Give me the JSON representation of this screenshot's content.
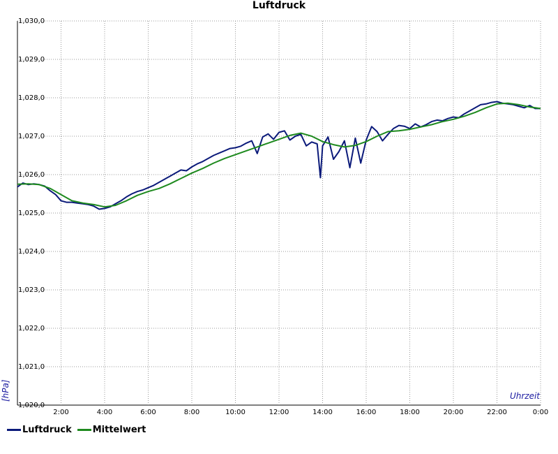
{
  "chart_data": {
    "type": "line",
    "title": "Luftdruck",
    "xlabel": "Uhrzeit",
    "ylabel": "[hPa]",
    "xlim": [
      0,
      24
    ],
    "ylim": [
      1020,
      1030
    ],
    "x_tick_labels": [
      "2:00",
      "4:00",
      "6:00",
      "8:00",
      "10:00",
      "12:00",
      "14:00",
      "16:00",
      "18:00",
      "20:00",
      "22:00",
      "0:00"
    ],
    "y_tick_labels": [
      "1,020,0",
      "1,021,0",
      "1,022,0",
      "1,023,0",
      "1,024,0",
      "1,025,0",
      "1,026,0",
      "1,027,0",
      "1,028,0",
      "1,029,0",
      "1,030,0"
    ],
    "grid": true,
    "legend_position": "bottom-left",
    "series": [
      {
        "name": "Luftdruck",
        "color": "#0b1a7a",
        "x": [
          0,
          0.25,
          0.5,
          0.75,
          1,
          1.25,
          1.5,
          1.75,
          2,
          2.25,
          2.5,
          2.75,
          3,
          3.25,
          3.5,
          3.75,
          4,
          4.25,
          4.5,
          4.75,
          5,
          5.25,
          5.5,
          5.75,
          6,
          6.25,
          6.5,
          6.75,
          7,
          7.25,
          7.5,
          7.75,
          8,
          8.25,
          8.5,
          8.75,
          9,
          9.25,
          9.5,
          9.75,
          10,
          10.25,
          10.5,
          10.75,
          11,
          11.25,
          11.5,
          11.75,
          12,
          12.25,
          12.5,
          12.75,
          13,
          13.25,
          13.5,
          13.75,
          13.9,
          14,
          14.25,
          14.5,
          14.75,
          15,
          15.25,
          15.5,
          15.75,
          16,
          16.25,
          16.5,
          16.75,
          17,
          17.25,
          17.5,
          17.75,
          18,
          18.25,
          18.5,
          18.75,
          19,
          19.25,
          19.5,
          19.75,
          20,
          20.25,
          20.5,
          20.75,
          21,
          21.25,
          21.5,
          21.75,
          22,
          22.25,
          22.5,
          22.75,
          23,
          23.25,
          23.5,
          23.75,
          24
        ],
        "values": [
          1025.68,
          1025.78,
          1025.74,
          1025.76,
          1025.74,
          1025.7,
          1025.58,
          1025.48,
          1025.32,
          1025.28,
          1025.28,
          1025.26,
          1025.24,
          1025.22,
          1025.18,
          1025.1,
          1025.12,
          1025.16,
          1025.24,
          1025.32,
          1025.42,
          1025.5,
          1025.56,
          1025.6,
          1025.66,
          1025.72,
          1025.8,
          1025.88,
          1025.96,
          1026.04,
          1026.12,
          1026.1,
          1026.2,
          1026.28,
          1026.34,
          1026.42,
          1026.5,
          1026.56,
          1026.62,
          1026.68,
          1026.7,
          1026.74,
          1026.82,
          1026.88,
          1026.55,
          1026.98,
          1027.06,
          1026.92,
          1027.1,
          1027.14,
          1026.9,
          1027.0,
          1027.05,
          1026.75,
          1026.85,
          1026.8,
          1025.92,
          1026.75,
          1026.98,
          1026.4,
          1026.6,
          1026.88,
          1026.18,
          1026.95,
          1026.3,
          1026.9,
          1027.25,
          1027.12,
          1026.88,
          1027.05,
          1027.2,
          1027.28,
          1027.26,
          1027.2,
          1027.32,
          1027.24,
          1027.3,
          1027.38,
          1027.42,
          1027.4,
          1027.46,
          1027.5,
          1027.48,
          1027.58,
          1027.66,
          1027.74,
          1027.82,
          1027.84,
          1027.88,
          1027.9,
          1027.86,
          1027.84,
          1027.82,
          1027.78,
          1027.74,
          1027.8,
          1027.72,
          1027.72
        ]
      },
      {
        "name": "Mittelwert",
        "color": "#1e8a1e",
        "x": [
          0,
          0.5,
          1,
          1.5,
          2,
          2.5,
          3,
          3.5,
          4,
          4.5,
          5,
          5.5,
          6,
          6.5,
          7,
          7.5,
          8,
          8.5,
          9,
          9.5,
          10,
          10.5,
          11,
          11.5,
          12,
          12.5,
          13,
          13.5,
          14,
          14.5,
          15,
          15.5,
          16,
          16.5,
          17,
          17.5,
          18,
          18.5,
          19,
          19.5,
          20,
          20.5,
          21,
          21.5,
          22,
          22.5,
          23,
          23.5,
          24
        ],
        "values": [
          1025.75,
          1025.76,
          1025.74,
          1025.64,
          1025.48,
          1025.32,
          1025.26,
          1025.22,
          1025.16,
          1025.2,
          1025.32,
          1025.46,
          1025.56,
          1025.64,
          1025.76,
          1025.9,
          1026.04,
          1026.16,
          1026.3,
          1026.42,
          1026.52,
          1026.62,
          1026.72,
          1026.82,
          1026.92,
          1027.02,
          1027.08,
          1027.0,
          1026.86,
          1026.78,
          1026.72,
          1026.76,
          1026.86,
          1027.0,
          1027.12,
          1027.14,
          1027.18,
          1027.24,
          1027.3,
          1027.38,
          1027.44,
          1027.52,
          1027.62,
          1027.74,
          1027.84,
          1027.86,
          1027.82,
          1027.76,
          1027.72
        ]
      }
    ]
  }
}
